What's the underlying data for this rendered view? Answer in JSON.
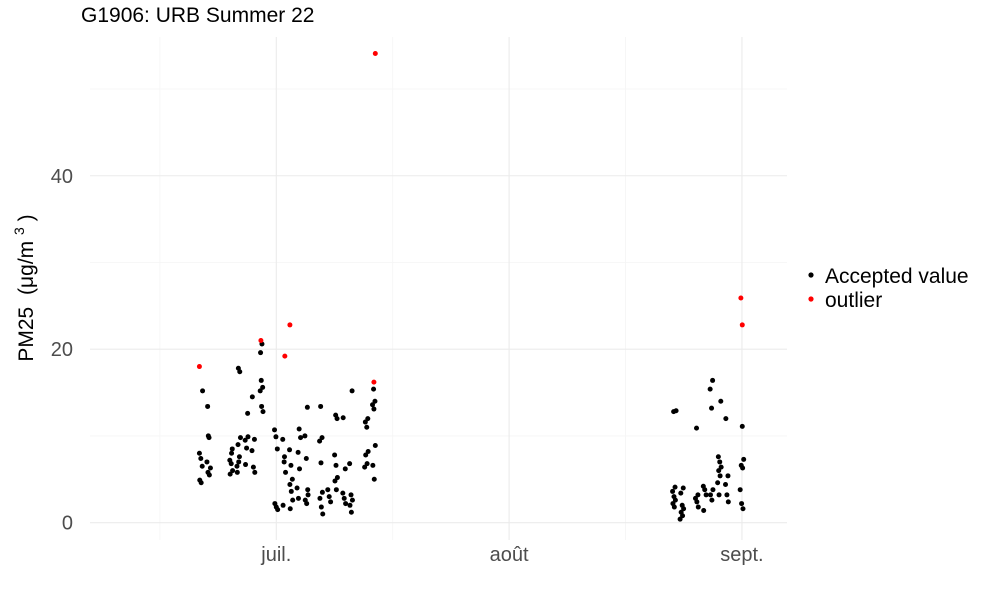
{
  "chart_data": {
    "type": "scatter",
    "title": "G1906: URB Summer 22",
    "xlabel": "",
    "ylabel": "PM25",
    "ylabel_unit": "(μg/m³)",
    "ylabel_unit_base": "(μg/m",
    "ylabel_unit_exp": "3",
    "ylabel_unit_close": ")",
    "xlim": [
      "2022-06-05",
      "2022-09-07"
    ],
    "ylim": [
      -2,
      56
    ],
    "y_ticks": [
      0,
      20,
      40
    ],
    "y_tick_labels": [
      "0",
      "20",
      "40"
    ],
    "x_ticks": [
      "2022-07-01",
      "2022-08-01",
      "2022-09-01"
    ],
    "x_tick_labels": [
      "juil.",
      "août",
      "sept."
    ],
    "grid": true,
    "legend_position": "right",
    "legend": [
      {
        "label": "Accepted value",
        "color": "#000000"
      },
      {
        "label": "outlier",
        "color": "#ff0000"
      }
    ],
    "series": [
      {
        "name": "Accepted value",
        "color": "#000000",
        "points": [
          [
            "2022-06-21",
            8.0
          ],
          [
            "2022-06-21",
            7.4
          ],
          [
            "2022-06-21",
            6.5
          ],
          [
            "2022-06-21",
            4.9
          ],
          [
            "2022-06-21",
            4.6
          ],
          [
            "2022-06-21",
            15.2
          ],
          [
            "2022-06-22",
            13.4
          ],
          [
            "2022-06-22",
            9.8
          ],
          [
            "2022-06-22",
            6.3
          ],
          [
            "2022-06-22",
            5.8
          ],
          [
            "2022-06-22",
            5.5
          ],
          [
            "2022-06-22",
            7.0
          ],
          [
            "2022-06-22",
            10.0
          ],
          [
            "2022-06-25",
            8.5
          ],
          [
            "2022-06-25",
            7.2
          ],
          [
            "2022-06-25",
            6.8
          ],
          [
            "2022-06-25",
            6.0
          ],
          [
            "2022-06-25",
            5.6
          ],
          [
            "2022-06-25",
            8.0
          ],
          [
            "2022-06-26",
            9.8
          ],
          [
            "2022-06-26",
            9.0
          ],
          [
            "2022-06-26",
            7.6
          ],
          [
            "2022-06-26",
            6.5
          ],
          [
            "2022-06-26",
            17.8
          ],
          [
            "2022-06-26",
            17.4
          ],
          [
            "2022-06-26",
            5.8
          ],
          [
            "2022-06-26",
            7.0
          ],
          [
            "2022-06-27",
            12.6
          ],
          [
            "2022-06-27",
            9.5
          ],
          [
            "2022-06-27",
            8.6
          ],
          [
            "2022-06-27",
            9.9
          ],
          [
            "2022-06-27",
            6.7
          ],
          [
            "2022-06-28",
            9.6
          ],
          [
            "2022-06-28",
            8.3
          ],
          [
            "2022-06-28",
            6.4
          ],
          [
            "2022-06-28",
            5.8
          ],
          [
            "2022-06-28",
            14.5
          ],
          [
            "2022-06-29",
            16.4
          ],
          [
            "2022-06-29",
            15.6
          ],
          [
            "2022-06-29",
            15.2
          ],
          [
            "2022-06-29",
            13.4
          ],
          [
            "2022-06-29",
            12.8
          ],
          [
            "2022-06-29",
            19.6
          ],
          [
            "2022-06-29",
            20.6
          ],
          [
            "2022-07-01",
            10.7
          ],
          [
            "2022-07-01",
            9.9
          ],
          [
            "2022-07-01",
            8.5
          ],
          [
            "2022-07-01",
            2.2
          ],
          [
            "2022-07-01",
            1.8
          ],
          [
            "2022-07-01",
            1.5
          ],
          [
            "2022-07-02",
            9.6
          ],
          [
            "2022-07-02",
            7.0
          ],
          [
            "2022-07-02",
            5.8
          ],
          [
            "2022-07-02",
            2.0
          ],
          [
            "2022-07-02",
            7.6
          ],
          [
            "2022-07-03",
            8.4
          ],
          [
            "2022-07-03",
            6.6
          ],
          [
            "2022-07-03",
            5.0
          ],
          [
            "2022-07-03",
            4.4
          ],
          [
            "2022-07-03",
            3.6
          ],
          [
            "2022-07-03",
            2.6
          ],
          [
            "2022-07-03",
            1.6
          ],
          [
            "2022-07-04",
            10.8
          ],
          [
            "2022-07-04",
            9.8
          ],
          [
            "2022-07-04",
            8.1
          ],
          [
            "2022-07-04",
            6.2
          ],
          [
            "2022-07-04",
            4.0
          ],
          [
            "2022-07-04",
            2.8
          ],
          [
            "2022-07-05",
            13.3
          ],
          [
            "2022-07-05",
            10.0
          ],
          [
            "2022-07-05",
            7.4
          ],
          [
            "2022-07-05",
            3.8
          ],
          [
            "2022-07-05",
            2.6
          ],
          [
            "2022-07-05",
            2.2
          ],
          [
            "2022-07-05",
            3.2
          ],
          [
            "2022-07-07",
            13.4
          ],
          [
            "2022-07-07",
            9.8
          ],
          [
            "2022-07-07",
            9.4
          ],
          [
            "2022-07-07",
            6.9
          ],
          [
            "2022-07-07",
            3.5
          ],
          [
            "2022-07-07",
            2.8
          ],
          [
            "2022-07-07",
            1.8
          ],
          [
            "2022-07-07",
            1.0
          ],
          [
            "2022-07-08",
            3.8
          ],
          [
            "2022-07-08",
            3.0
          ],
          [
            "2022-07-08",
            2.4
          ],
          [
            "2022-07-09",
            12.4
          ],
          [
            "2022-07-09",
            12.0
          ],
          [
            "2022-07-09",
            7.8
          ],
          [
            "2022-07-09",
            6.6
          ],
          [
            "2022-07-09",
            5.2
          ],
          [
            "2022-07-09",
            4.8
          ],
          [
            "2022-07-09",
            3.8
          ],
          [
            "2022-07-10",
            6.2
          ],
          [
            "2022-07-10",
            3.4
          ],
          [
            "2022-07-10",
            2.8
          ],
          [
            "2022-07-10",
            2.2
          ],
          [
            "2022-07-10",
            12.1
          ],
          [
            "2022-07-11",
            15.2
          ],
          [
            "2022-07-11",
            6.8
          ],
          [
            "2022-07-11",
            3.2
          ],
          [
            "2022-07-11",
            2.6
          ],
          [
            "2022-07-11",
            2.0
          ],
          [
            "2022-07-11",
            1.2
          ],
          [
            "2022-07-13",
            12.0
          ],
          [
            "2022-07-13",
            11.6
          ],
          [
            "2022-07-13",
            11.0
          ],
          [
            "2022-07-13",
            8.2
          ],
          [
            "2022-07-13",
            7.8
          ],
          [
            "2022-07-13",
            6.8
          ],
          [
            "2022-07-13",
            6.4
          ],
          [
            "2022-07-14",
            15.4
          ],
          [
            "2022-07-14",
            14.0
          ],
          [
            "2022-07-14",
            13.6
          ],
          [
            "2022-07-14",
            13.1
          ],
          [
            "2022-07-14",
            8.9
          ],
          [
            "2022-07-14",
            6.6
          ],
          [
            "2022-07-14",
            5.0
          ],
          [
            "2022-08-23",
            12.9
          ],
          [
            "2022-08-23",
            12.8
          ],
          [
            "2022-08-23",
            4.1
          ],
          [
            "2022-08-23",
            3.6
          ],
          [
            "2022-08-23",
            3.0
          ],
          [
            "2022-08-23",
            2.6
          ],
          [
            "2022-08-23",
            2.2
          ],
          [
            "2022-08-23",
            1.8
          ],
          [
            "2022-08-24",
            4.0
          ],
          [
            "2022-08-24",
            3.4
          ],
          [
            "2022-08-24",
            2.0
          ],
          [
            "2022-08-24",
            1.6
          ],
          [
            "2022-08-24",
            1.2
          ],
          [
            "2022-08-24",
            0.8
          ],
          [
            "2022-08-24",
            0.4
          ],
          [
            "2022-08-26",
            10.9
          ],
          [
            "2022-08-26",
            3.2
          ],
          [
            "2022-08-26",
            2.8
          ],
          [
            "2022-08-26",
            2.4
          ],
          [
            "2022-08-26",
            1.8
          ],
          [
            "2022-08-27",
            4.2
          ],
          [
            "2022-08-27",
            3.8
          ],
          [
            "2022-08-27",
            3.2
          ],
          [
            "2022-08-27",
            1.4
          ],
          [
            "2022-08-28",
            16.4
          ],
          [
            "2022-08-28",
            15.4
          ],
          [
            "2022-08-28",
            13.2
          ],
          [
            "2022-08-28",
            3.8
          ],
          [
            "2022-08-28",
            3.2
          ],
          [
            "2022-08-28",
            2.6
          ],
          [
            "2022-08-29",
            14.0
          ],
          [
            "2022-08-29",
            7.6
          ],
          [
            "2022-08-29",
            7.0
          ],
          [
            "2022-08-29",
            6.4
          ],
          [
            "2022-08-29",
            6.0
          ],
          [
            "2022-08-29",
            5.4
          ],
          [
            "2022-08-29",
            4.6
          ],
          [
            "2022-08-29",
            3.2
          ],
          [
            "2022-08-30",
            5.4
          ],
          [
            "2022-08-30",
            4.4
          ],
          [
            "2022-08-30",
            3.2
          ],
          [
            "2022-08-30",
            2.4
          ],
          [
            "2022-08-30",
            12.0
          ],
          [
            "2022-09-01",
            11.1
          ],
          [
            "2022-09-01",
            7.3
          ],
          [
            "2022-09-01",
            6.6
          ],
          [
            "2022-09-01",
            6.3
          ],
          [
            "2022-09-01",
            3.8
          ],
          [
            "2022-09-01",
            2.2
          ],
          [
            "2022-09-01",
            1.6
          ]
        ]
      },
      {
        "name": "outlier",
        "color": "#ff0000",
        "points": [
          [
            "2022-06-21",
            18.0
          ],
          [
            "2022-06-29",
            21.0
          ],
          [
            "2022-07-02",
            19.2
          ],
          [
            "2022-07-03",
            22.8
          ],
          [
            "2022-07-14",
            16.2
          ],
          [
            "2022-07-14",
            54.1
          ],
          [
            "2022-09-01",
            25.9
          ],
          [
            "2022-09-01",
            22.8
          ]
        ]
      }
    ]
  }
}
